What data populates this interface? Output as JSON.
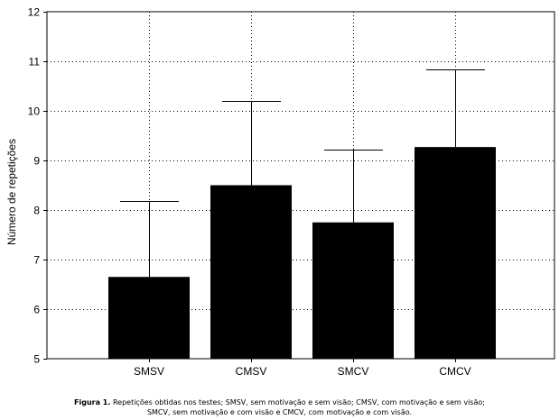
{
  "chart_data": {
    "type": "bar",
    "categories": [
      "SMSV",
      "CMSV",
      "SMCV",
      "CMCV"
    ],
    "values": [
      6.65,
      8.5,
      7.75,
      9.27
    ],
    "error_upper": [
      8.18,
      10.2,
      9.22,
      10.83
    ],
    "ylabel": "Número de repetições",
    "xlabel": "",
    "ylim": [
      5,
      12
    ],
    "yticks": [
      5,
      6,
      7,
      8,
      9,
      10,
      11,
      12
    ],
    "grid": true,
    "bar_color": "#000000"
  },
  "caption": {
    "label": "Figura 1.",
    "line1": " Repetições obtidas nos testes; SMSV, sem motivação e sem visão; CMSV, com motivação e sem visão;",
    "line2": "SMCV, sem motivação e com visão e CMCV, com motivação e com visão."
  }
}
